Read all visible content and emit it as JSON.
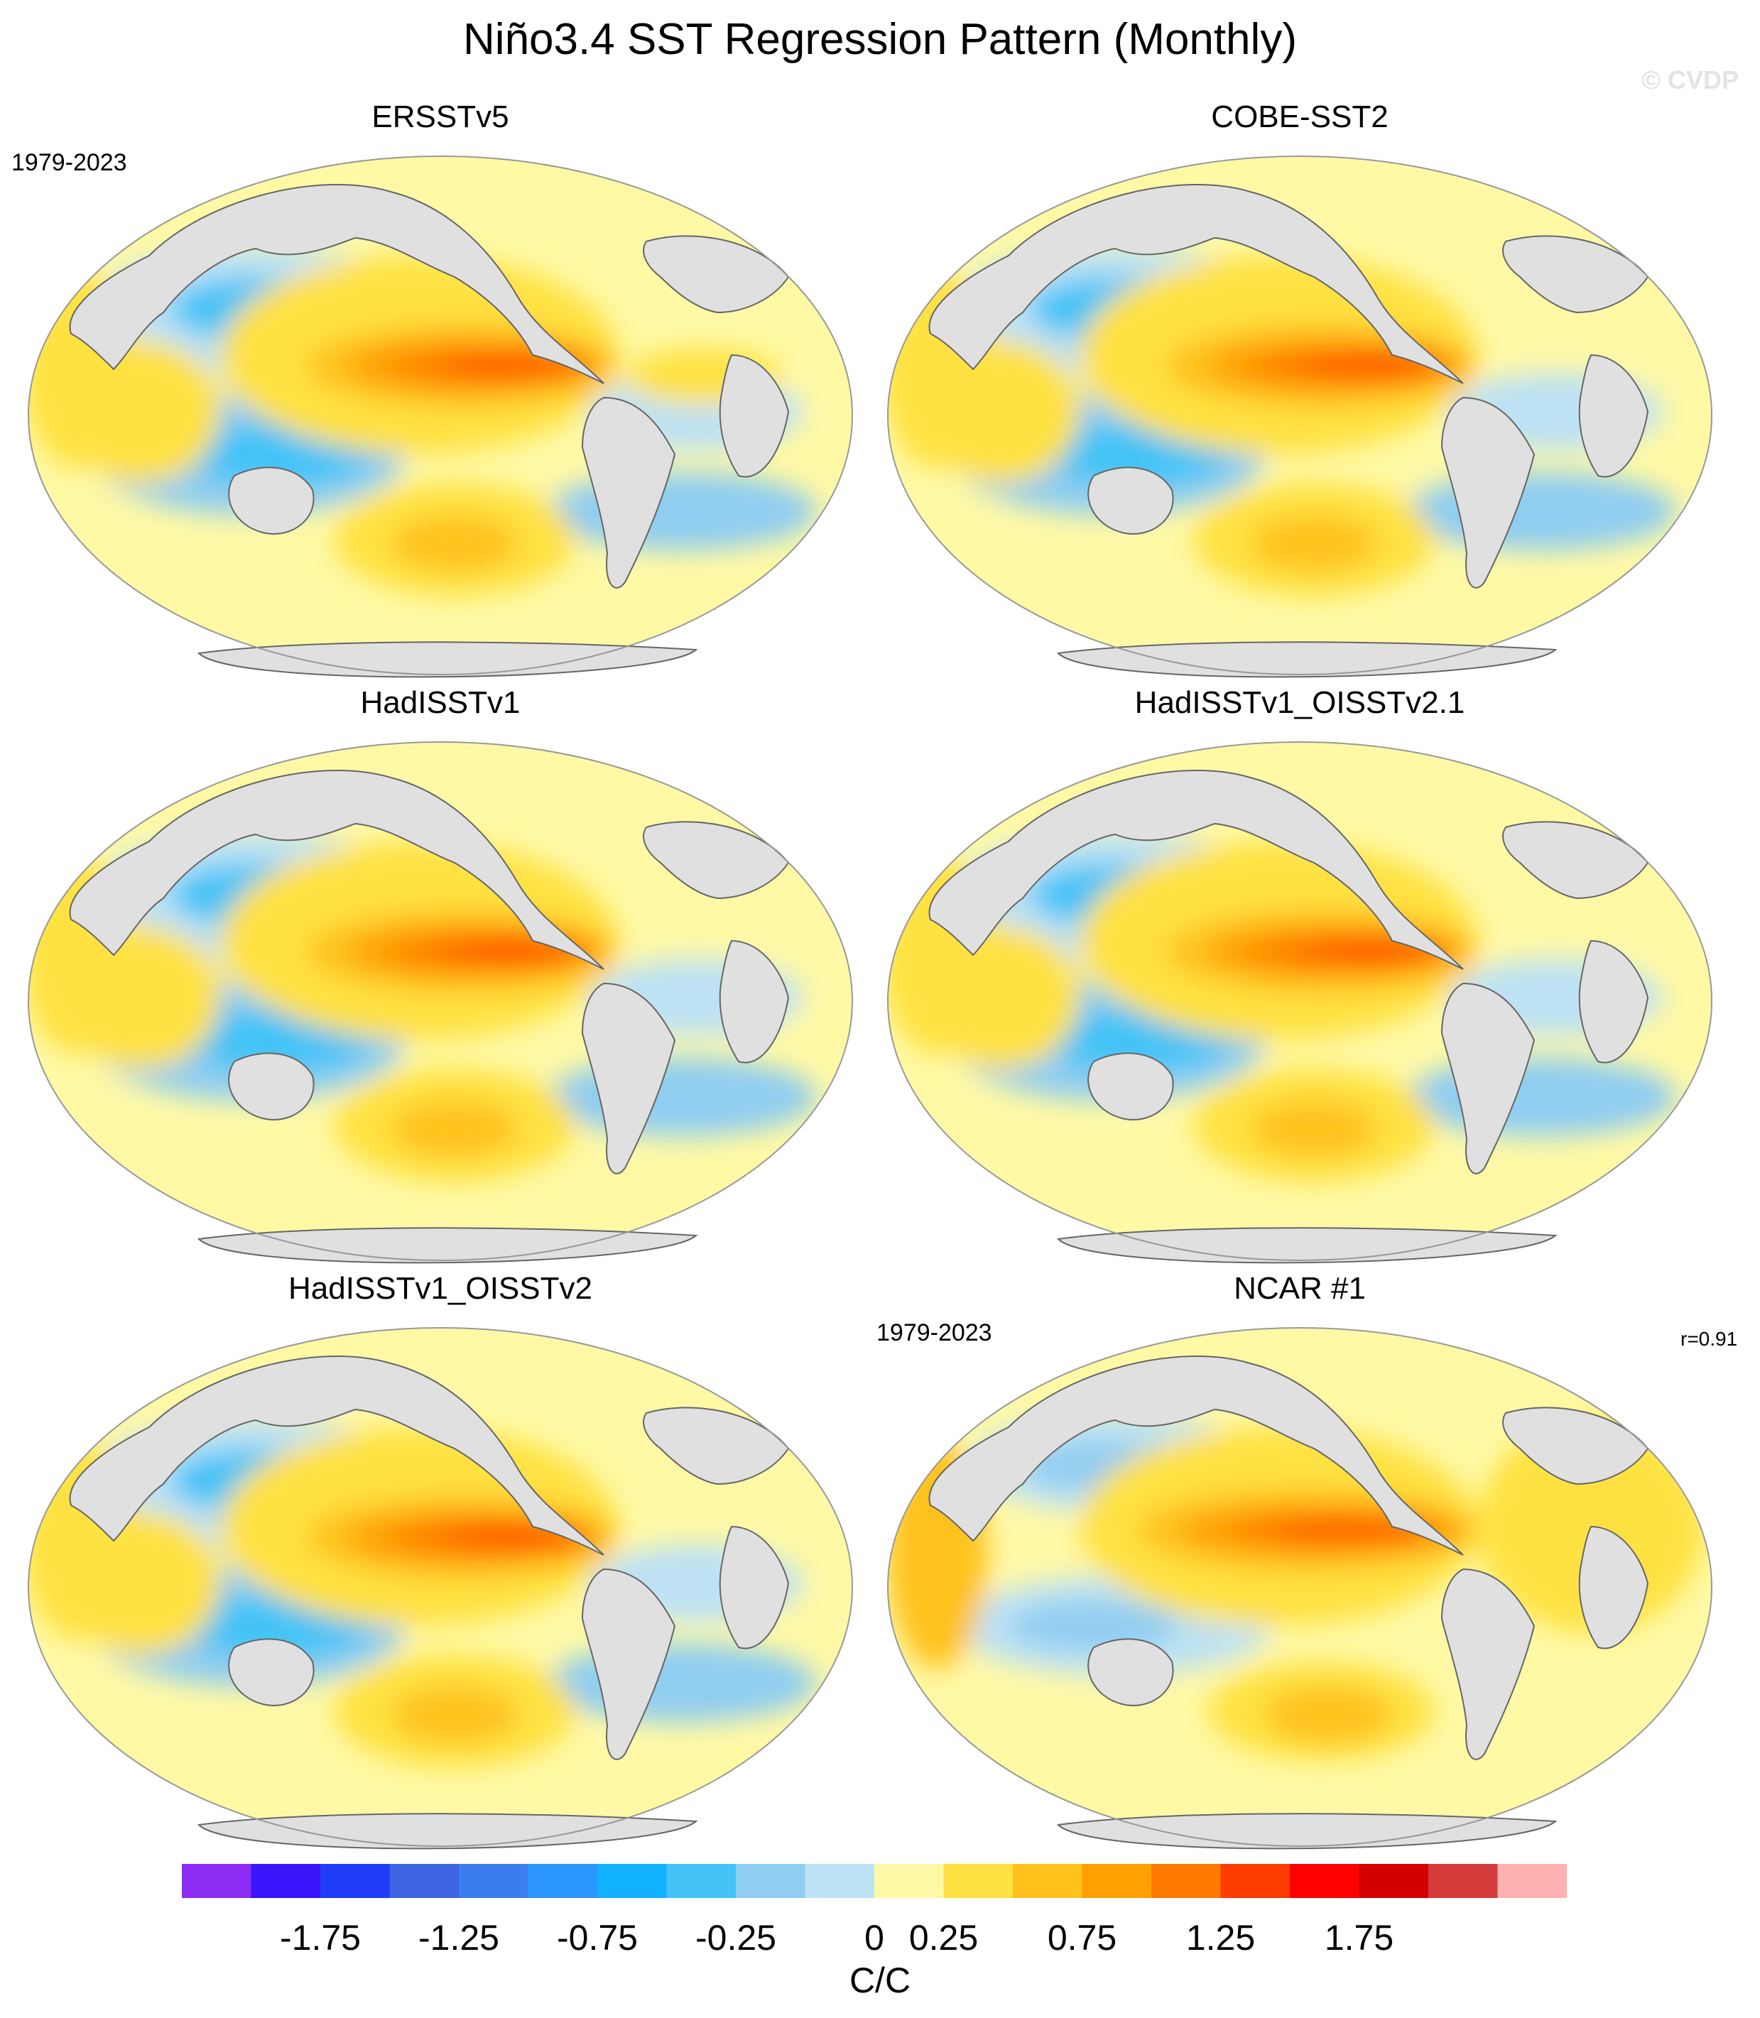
{
  "title": "Niño3.4 SST Regression Pattern (Monthly)",
  "watermark": "© CVDP",
  "panels": [
    {
      "name": "ERSSTv5",
      "period": "1979-2023",
      "corr": ""
    },
    {
      "name": "COBE-SST2",
      "period": "",
      "corr": ""
    },
    {
      "name": "HadISSTv1",
      "period": "",
      "corr": ""
    },
    {
      "name": "HadISSTv1_OISSTv2.1",
      "period": "",
      "corr": ""
    },
    {
      "name": "HadISSTv1_OISSTv2",
      "period": "",
      "corr": ""
    },
    {
      "name": "NCAR #1",
      "period": "1979-2023",
      "corr": "r=0.91"
    }
  ],
  "colorbar": {
    "units": "C/C",
    "colors": [
      "#8c2cf4",
      "#3a14fb",
      "#1f3cf7",
      "#3e63e3",
      "#3b7def",
      "#2b96fb",
      "#10b2ff",
      "#43c3f7",
      "#8fcdf1",
      "#bde2f4",
      "#fff9a6",
      "#ffe242",
      "#ffc21a",
      "#ff9f00",
      "#ff7b00",
      "#ff3c00",
      "#ff0000",
      "#d40000",
      "#d43c3c",
      "#ffb0b0"
    ],
    "tick_labels": [
      "-1.75",
      "-1.25",
      "-0.75",
      "-0.25",
      "0",
      "0.25",
      "0.75",
      "1.25",
      "1.75"
    ]
  }
}
